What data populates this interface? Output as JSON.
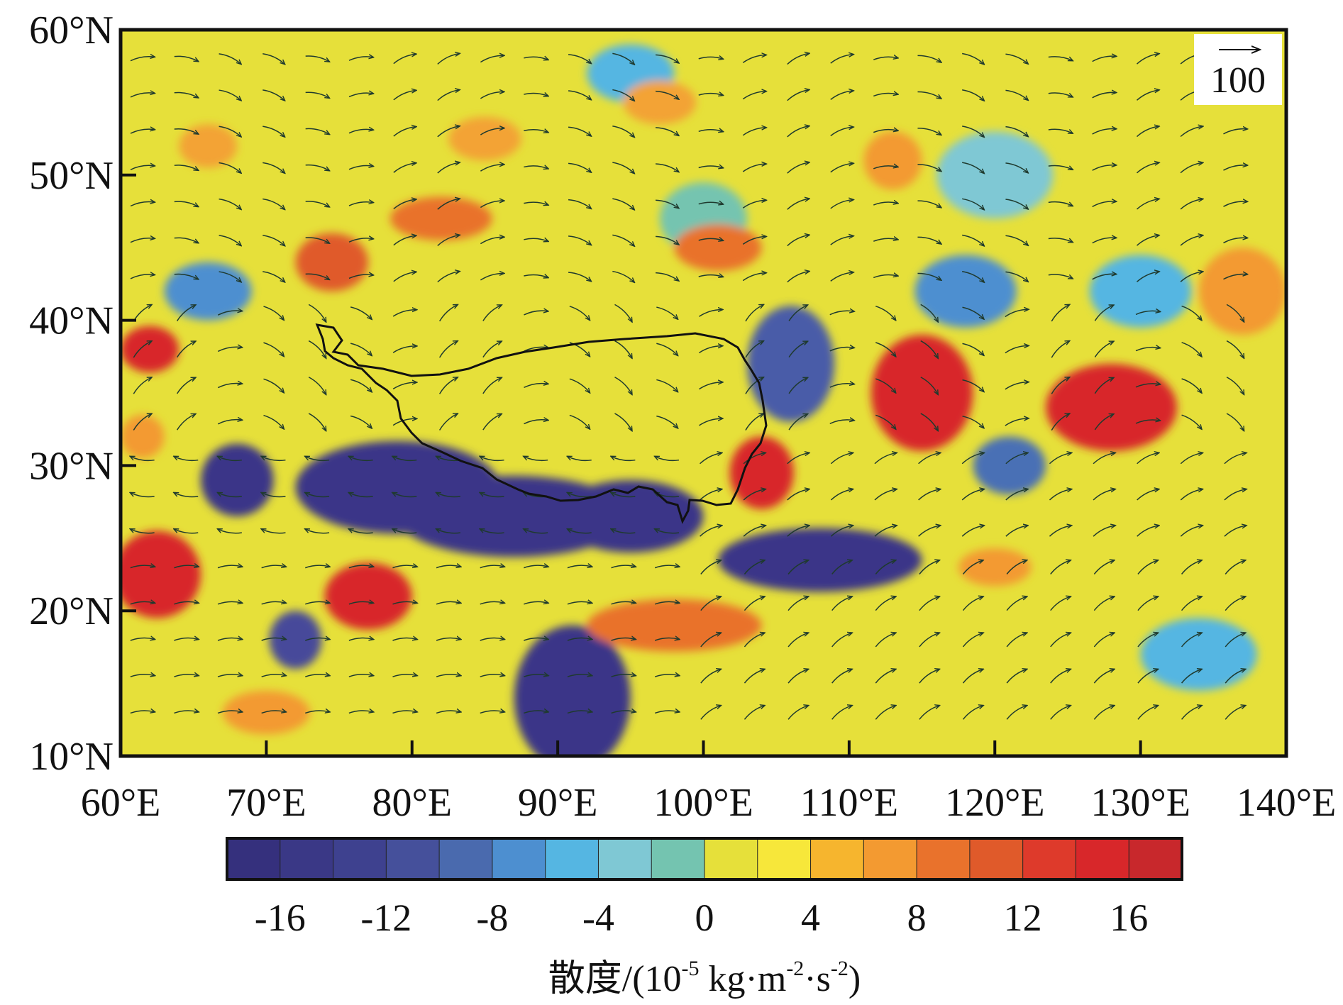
{
  "map": {
    "lon_range": [
      60,
      140
    ],
    "lat_range": [
      10,
      60
    ],
    "lon_ticks": [
      60,
      70,
      80,
      90,
      100,
      110,
      120,
      130,
      140
    ],
    "lon_tick_labels": [
      "60°E",
      "70°E",
      "80°E",
      "90°E",
      "100°E",
      "110°E",
      "120°E",
      "130°E",
      "140°E"
    ],
    "lat_ticks": [
      60,
      50,
      40,
      30,
      20,
      10
    ],
    "lat_tick_labels": [
      "60°N",
      "50°N",
      "40°N",
      "30°N",
      "20°N",
      "10°N"
    ],
    "reference_vector_label": "100",
    "background_level": "#e6e03a",
    "field_patches": [
      {
        "lon": 79,
        "lat": 28.5,
        "rlon": 7,
        "rlat": 3.2,
        "color": "#3b3488"
      },
      {
        "lon": 87,
        "lat": 26.5,
        "rlon": 8,
        "rlat": 2.8,
        "color": "#3b3488"
      },
      {
        "lon": 95,
        "lat": 26.5,
        "rlon": 5,
        "rlat": 2.5,
        "color": "#3b3488"
      },
      {
        "lon": 108,
        "lat": 23.5,
        "rlon": 7,
        "rlat": 2.2,
        "color": "#3b3488"
      },
      {
        "lon": 91,
        "lat": 14,
        "rlon": 4,
        "rlat": 5,
        "color": "#3b3488"
      },
      {
        "lon": 68,
        "lat": 29,
        "rlon": 2.5,
        "rlat": 2.5,
        "color": "#3b3488"
      },
      {
        "lon": 72,
        "lat": 18,
        "rlon": 1.8,
        "rlat": 2,
        "color": "#46489a"
      },
      {
        "lon": 106,
        "lat": 37,
        "rlon": 3,
        "rlat": 4,
        "color": "#4a5ca8"
      },
      {
        "lon": 121,
        "lat": 30,
        "rlon": 2.5,
        "rlat": 2,
        "color": "#4a6fb5"
      },
      {
        "lon": 118,
        "lat": 42,
        "rlon": 3.5,
        "rlat": 2.5,
        "color": "#4d8fd0"
      },
      {
        "lon": 66,
        "lat": 42,
        "rlon": 3,
        "rlat": 2,
        "color": "#4d8fd0"
      },
      {
        "lon": 130,
        "lat": 42,
        "rlon": 3.5,
        "rlat": 2.5,
        "color": "#55b6e2"
      },
      {
        "lon": 95,
        "lat": 57,
        "rlon": 3,
        "rlat": 2,
        "color": "#55b6e2"
      },
      {
        "lon": 120,
        "lat": 50,
        "rlon": 4,
        "rlat": 3,
        "color": "#7fc8d4"
      },
      {
        "lon": 100,
        "lat": 47,
        "rlon": 3,
        "rlat": 2.5,
        "color": "#74c4b0"
      },
      {
        "lon": 134,
        "lat": 17,
        "rlon": 4,
        "rlat": 2.5,
        "color": "#55b6e2"
      },
      {
        "lon": 115,
        "lat": 35,
        "rlon": 3.5,
        "rlat": 4,
        "color": "#d8272a"
      },
      {
        "lon": 128,
        "lat": 34,
        "rlon": 4.5,
        "rlat": 3,
        "color": "#d8272a"
      },
      {
        "lon": 104,
        "lat": 29.5,
        "rlon": 2.2,
        "rlat": 2.5,
        "color": "#d8272a"
      },
      {
        "lon": 62.5,
        "lat": 22.5,
        "rlon": 3,
        "rlat": 3,
        "color": "#d8272a"
      },
      {
        "lon": 77,
        "lat": 21,
        "rlon": 3,
        "rlat": 2.3,
        "color": "#d8272a"
      },
      {
        "lon": 62,
        "lat": 38,
        "rlon": 2,
        "rlat": 1.6,
        "color": "#d8272a"
      },
      {
        "lon": 74.5,
        "lat": 44,
        "rlon": 2.5,
        "rlat": 2,
        "color": "#e05a2a"
      },
      {
        "lon": 98,
        "lat": 19,
        "rlon": 6,
        "rlat": 1.8,
        "color": "#e9722c"
      },
      {
        "lon": 101,
        "lat": 45,
        "rlon": 3,
        "rlat": 1.6,
        "color": "#e9722c"
      },
      {
        "lon": 82,
        "lat": 47,
        "rlon": 3.5,
        "rlat": 1.5,
        "color": "#e9722c"
      },
      {
        "lon": 113,
        "lat": 51,
        "rlon": 2,
        "rlat": 2,
        "color": "#f39a31"
      },
      {
        "lon": 97,
        "lat": 55,
        "rlon": 2.5,
        "rlat": 1.5,
        "color": "#f3a334"
      },
      {
        "lon": 85,
        "lat": 52.5,
        "rlon": 2.5,
        "rlat": 1.5,
        "color": "#f3a334"
      },
      {
        "lon": 61.5,
        "lat": 32,
        "rlon": 1.5,
        "rlat": 1.5,
        "color": "#f39a31"
      },
      {
        "lon": 137,
        "lat": 42,
        "rlon": 3,
        "rlat": 3,
        "color": "#f39a31"
      },
      {
        "lon": 120,
        "lat": 23,
        "rlon": 2.5,
        "rlat": 1.3,
        "color": "#f39a31"
      },
      {
        "lon": 70,
        "lat": 13,
        "rlon": 3,
        "rlat": 1.5,
        "color": "#f39a31"
      },
      {
        "lon": 66,
        "lat": 52,
        "rlon": 2,
        "rlat": 1.5,
        "color": "#f3a334"
      }
    ]
  },
  "colorbar": {
    "colors": [
      "#35307d",
      "#3a3886",
      "#3e418f",
      "#45509b",
      "#4a6aae",
      "#4d8fd0",
      "#55b6e2",
      "#7fc8d4",
      "#74c4b0",
      "#e6e03a",
      "#f7e73a",
      "#f6b52e",
      "#f39a31",
      "#e9722c",
      "#e05a2a",
      "#de3a2b",
      "#d8272a",
      "#c8282c"
    ],
    "tick_values": [
      -16,
      -12,
      -8,
      -4,
      0,
      4,
      8,
      12,
      16
    ],
    "tick_labels": [
      "-16",
      "-12",
      "-8",
      "-4",
      "0",
      "4",
      "8",
      "12",
      "16"
    ],
    "range": [
      -18,
      18
    ],
    "title": "散度/(10-5 kg·m-2·s-2)"
  }
}
